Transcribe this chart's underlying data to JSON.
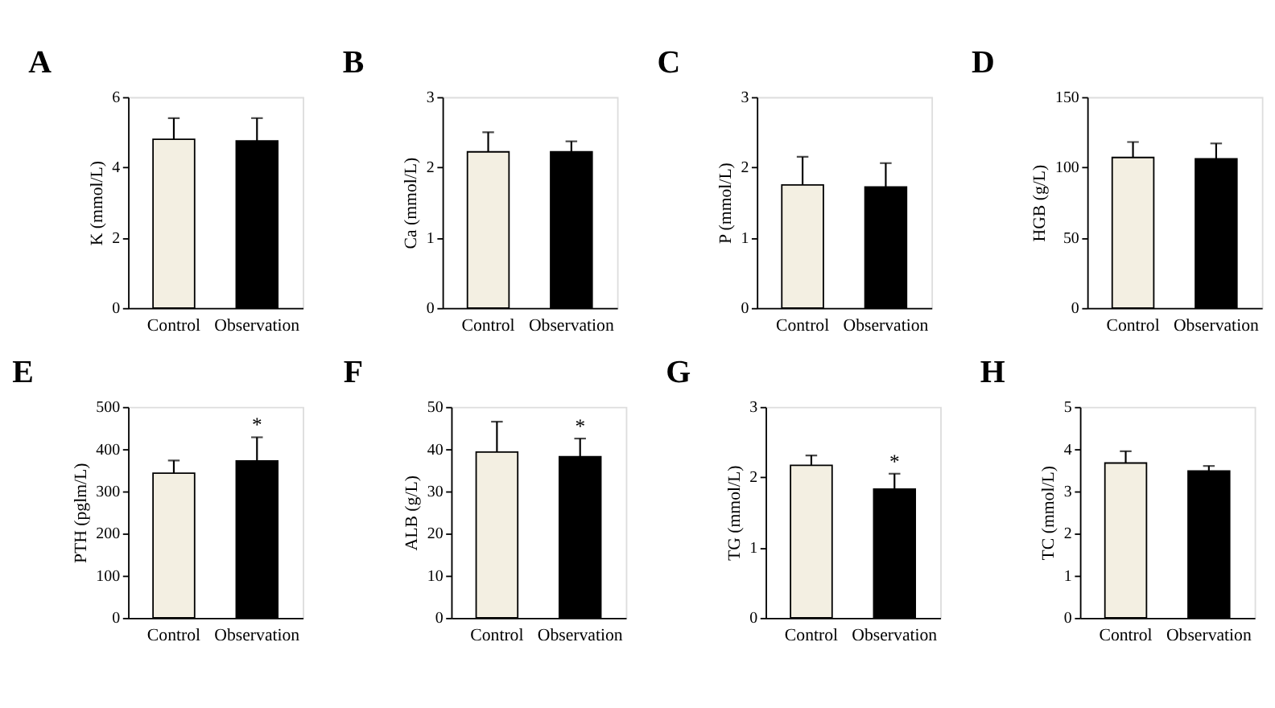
{
  "chart_data": [
    {
      "type": "bar",
      "title": "A",
      "ylabel": "K (mmol/L)",
      "categories": [
        "Control",
        "Observation"
      ],
      "values": [
        4.8,
        4.75
      ],
      "colors": [
        "#f3efe2",
        "#000000"
      ],
      "errors": [
        [
          4.8,
          5.4
        ],
        [
          4.75,
          5.4
        ]
      ],
      "ylim": [
        0,
        6
      ],
      "yticks": [
        0,
        2,
        4,
        6
      ]
    },
    {
      "type": "bar",
      "title": "B",
      "ylabel": "Ca (mmol/L)",
      "categories": [
        "Control",
        "Observation"
      ],
      "values": [
        2.22,
        2.22
      ],
      "colors": [
        "#f3efe2",
        "#000000"
      ],
      "errors": [
        [
          2.22,
          2.5
        ],
        [
          2.22,
          2.37
        ]
      ],
      "ylim": [
        0,
        3
      ],
      "yticks": [
        0,
        1,
        2,
        3
      ]
    },
    {
      "type": "bar",
      "title": "C",
      "ylabel": "P (mmol/L)",
      "categories": [
        "Control",
        "Observation"
      ],
      "values": [
        1.75,
        1.72
      ],
      "colors": [
        "#f3efe2",
        "#000000"
      ],
      "errors": [
        [
          1.75,
          2.15
        ],
        [
          1.72,
          2.06
        ]
      ],
      "ylim": [
        0,
        3
      ],
      "yticks": [
        0,
        1,
        2,
        3
      ]
    },
    {
      "type": "bar",
      "title": "D",
      "ylabel": "HGB (g/L)",
      "categories": [
        "Control",
        "Observation"
      ],
      "values": [
        107,
        106
      ],
      "colors": [
        "#f3efe2",
        "#000000"
      ],
      "errors": [
        [
          107,
          118
        ],
        [
          106,
          117
        ]
      ],
      "ylim": [
        0,
        150
      ],
      "yticks": [
        0,
        50,
        100,
        150
      ]
    },
    {
      "type": "bar",
      "title": "E",
      "ylabel": "PTH (pglm/L)",
      "categories": [
        "Control",
        "Observation"
      ],
      "values": [
        343,
        372
      ],
      "colors": [
        "#f3efe2",
        "#000000"
      ],
      "errors": [
        [
          343,
          373
        ],
        [
          372,
          428
        ]
      ],
      "ylim": [
        0,
        500
      ],
      "yticks": [
        0,
        100,
        200,
        300,
        400,
        500
      ],
      "annotations": [
        {
          "text": "*",
          "x": "Observation",
          "y": 428
        }
      ]
    },
    {
      "type": "bar",
      "title": "F",
      "ylabel": "ALB (g/L)",
      "categories": [
        "Control",
        "Observation"
      ],
      "values": [
        39.3,
        38.2
      ],
      "colors": [
        "#f3efe2",
        "#000000"
      ],
      "errors": [
        [
          39.3,
          46.5
        ],
        [
          38.2,
          42.5
        ]
      ],
      "ylim": [
        0,
        50
      ],
      "yticks": [
        0,
        10,
        20,
        30,
        40,
        50
      ],
      "annotations": [
        {
          "text": "*",
          "x": "Observation",
          "y": 42.5
        }
      ]
    },
    {
      "type": "bar",
      "title": "G",
      "ylabel": "TG (mmol/L)",
      "categories": [
        "Control",
        "Observation"
      ],
      "values": [
        2.17,
        1.83
      ],
      "colors": [
        "#f3efe2",
        "#000000"
      ],
      "errors": [
        [
          2.17,
          2.31
        ],
        [
          1.83,
          2.05
        ]
      ],
      "ylim": [
        0,
        3
      ],
      "yticks": [
        0,
        1,
        2,
        3
      ],
      "annotations": [
        {
          "text": "*",
          "x": "Observation",
          "y": 2.05
        }
      ]
    },
    {
      "type": "bar",
      "title": "H",
      "ylabel": "TC (mmol/L)",
      "categories": [
        "Control",
        "Observation"
      ],
      "values": [
        3.67,
        3.48
      ],
      "colors": [
        "#f3efe2",
        "#000000"
      ],
      "errors": [
        [
          3.67,
          3.95
        ],
        [
          3.48,
          3.6
        ]
      ],
      "ylim": [
        0,
        5
      ],
      "yticks": [
        0,
        1,
        2,
        3,
        4,
        5
      ]
    }
  ]
}
